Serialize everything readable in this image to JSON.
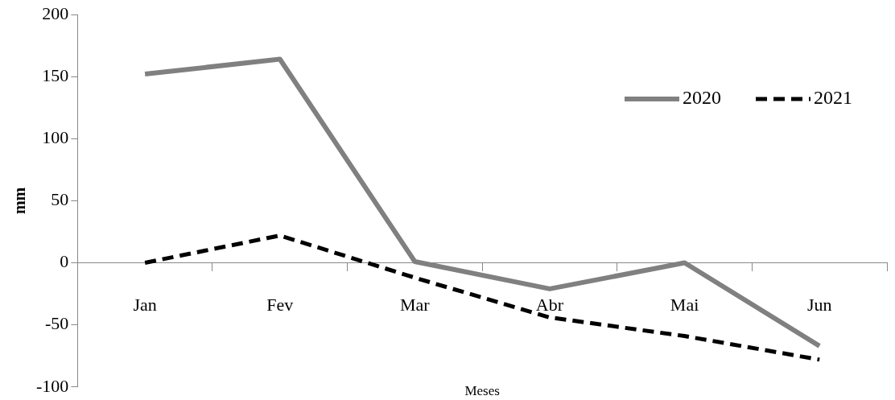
{
  "chart_data": {
    "type": "line",
    "xlabel": "Meses",
    "ylabel": "mm",
    "categories": [
      "Jan",
      "Fev",
      "Mar",
      "Abr",
      "Mai",
      "Jun"
    ],
    "series": [
      {
        "name": "2020",
        "color": "#808080",
        "values": [
          152,
          164,
          1,
          -21,
          0,
          -67
        ]
      },
      {
        "name": "2021",
        "color": "#000000",
        "line_style": "dashed",
        "values": [
          0,
          22,
          -12,
          -44,
          -59,
          -78
        ]
      }
    ],
    "ylim": [
      -100,
      200
    ],
    "yticks": [
      -100,
      -50,
      0,
      50,
      100,
      150,
      200
    ],
    "grid": false,
    "legend": "top right",
    "marker": "none"
  }
}
